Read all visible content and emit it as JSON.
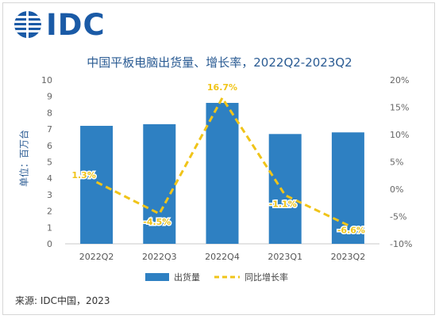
{
  "logo": {
    "text": "IDC"
  },
  "source": "来源: IDC中国，2023",
  "colors": {
    "bar": "#2e80c2",
    "line": "#f0c419",
    "label": "#f0c419",
    "brand": "#1a5aa6",
    "title": "#2a5b93"
  },
  "chart_data": {
    "type": "bar",
    "title": "中国平板电脑出货量、增长率，2022Q2-2023Q2",
    "ylabel": "单位：百万台",
    "categories": [
      "2022Q2",
      "2022Q3",
      "2022Q4",
      "2023Q1",
      "2023Q2"
    ],
    "series": [
      {
        "name": "出货量",
        "type": "bar",
        "axis": "left",
        "values": [
          7.2,
          7.3,
          8.6,
          6.7,
          6.8
        ]
      },
      {
        "name": "同比增长率",
        "type": "line",
        "axis": "right",
        "style": "dashed",
        "values": [
          1.3,
          -4.5,
          16.7,
          -1.1,
          -6.6
        ],
        "labels": [
          "1.3%",
          "-4.5%",
          "16.7%",
          "-1.1%",
          "-6.6%"
        ]
      }
    ],
    "ylim": [
      0,
      10
    ],
    "yticks": [
      "0",
      "1",
      "2",
      "3",
      "4",
      "5",
      "6",
      "7",
      "8",
      "9",
      "10"
    ],
    "y2lim": [
      -10,
      20
    ],
    "y2ticks": [
      "-10%",
      "-5%",
      "0%",
      "5%",
      "10%",
      "15%",
      "20%"
    ],
    "grid": false,
    "legend_position": "bottom"
  }
}
